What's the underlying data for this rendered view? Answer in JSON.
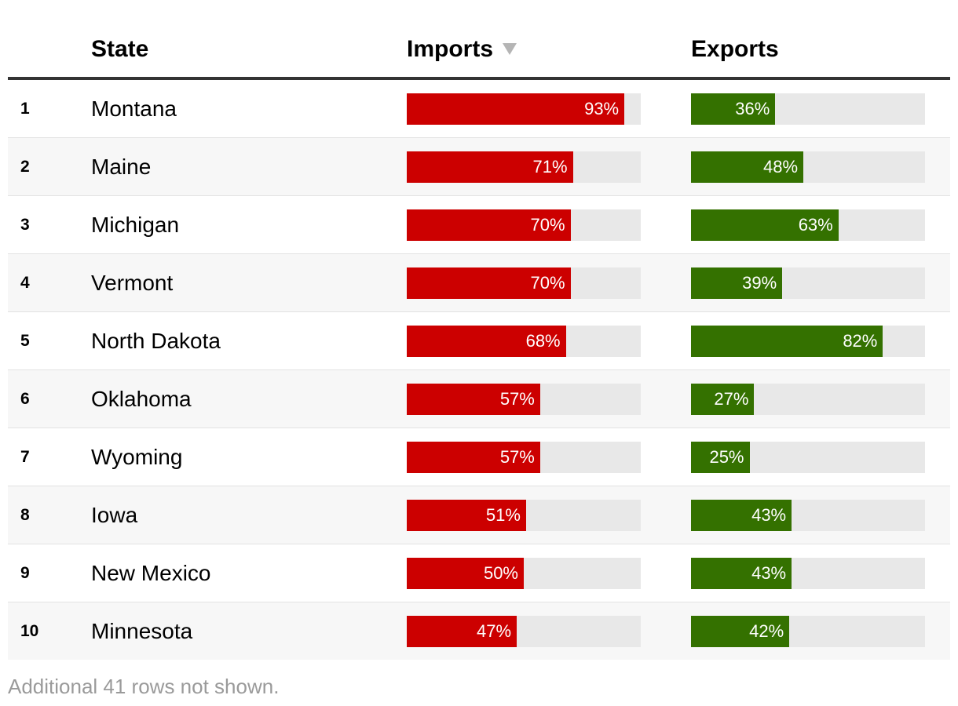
{
  "table": {
    "columns": {
      "rank": "",
      "state": "State",
      "imports": "Imports",
      "exports": "Exports"
    },
    "sort": {
      "column": "imports",
      "direction": "descending"
    },
    "colors": {
      "imports": "#cc0000",
      "exports": "#347100",
      "track": "#e8e8e8"
    },
    "footer": "Additional 41 rows not shown."
  },
  "chart_data": {
    "type": "table",
    "columns": [
      "State",
      "Imports",
      "Exports"
    ],
    "rows": [
      {
        "rank": "1",
        "state": "Montana",
        "imports": 93,
        "exports": 36
      },
      {
        "rank": "2",
        "state": "Maine",
        "imports": 71,
        "exports": 48
      },
      {
        "rank": "3",
        "state": "Michigan",
        "imports": 70,
        "exports": 63
      },
      {
        "rank": "4",
        "state": "Vermont",
        "imports": 70,
        "exports": 39
      },
      {
        "rank": "5",
        "state": "North Dakota",
        "imports": 68,
        "exports": 82
      },
      {
        "rank": "6",
        "state": "Oklahoma",
        "imports": 57,
        "exports": 27
      },
      {
        "rank": "7",
        "state": "Wyoming",
        "imports": 57,
        "exports": 25
      },
      {
        "rank": "8",
        "state": "Iowa",
        "imports": 51,
        "exports": 43
      },
      {
        "rank": "9",
        "state": "New Mexico",
        "imports": 50,
        "exports": 43
      },
      {
        "rank": "10",
        "state": "Minnesota",
        "imports": 47,
        "exports": 42
      }
    ],
    "value_unit": "%",
    "value_range": [
      0,
      100
    ]
  }
}
